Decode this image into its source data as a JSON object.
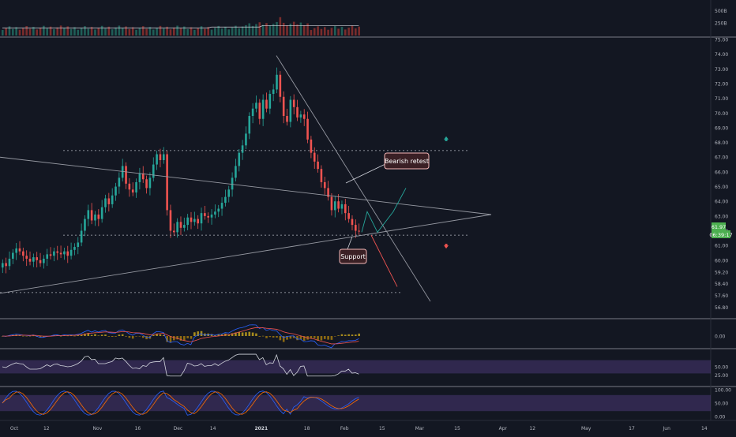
{
  "chart_data": {
    "type": "candlestick",
    "title": "",
    "price_axis": {
      "ticks": [
        56.8,
        57.6,
        58.4,
        59.2,
        60.0,
        61.0,
        62.0,
        63.0,
        64.0,
        65.0,
        66.0,
        67.0,
        68.0,
        69.0,
        70.0,
        71.0,
        72.0,
        73.0,
        74.0,
        75.0
      ],
      "tick_labels": [
        "56.80",
        "57.60",
        "58.40",
        "59.20",
        "60.00",
        "61.00",
        "62.00",
        "63.00",
        "64.00",
        "65.00",
        "66.00",
        "67.00",
        "68.00",
        "69.00",
        "70.00",
        "71.00",
        "72.00",
        "73.00",
        "74.00",
        "75.00"
      ],
      "ylim": [
        56.4,
        75.0
      ]
    },
    "time_axis": {
      "labels": [
        "Oct",
        "12",
        "Nov",
        "16",
        "Dec",
        "14",
        "2021",
        "18",
        "Feb",
        "15",
        "Mar",
        "15",
        "Apr",
        "12",
        "May",
        "17",
        "Jun",
        "14"
      ],
      "label_days": [
        0,
        12,
        31,
        46,
        61,
        74,
        92,
        109,
        123,
        137,
        151,
        165,
        182,
        193,
        213,
        230,
        243,
        257
      ]
    },
    "last_price": "61.97",
    "countdown": "06:39:17",
    "candles_close": [
      59.8,
      59.6,
      60.1,
      60.5,
      60.8,
      60.6,
      60.3,
      60.1,
      59.9,
      60.2,
      60.0,
      59.8,
      60.1,
      60.4,
      60.3,
      60.6,
      60.5,
      60.4,
      60.6,
      60.3,
      60.7,
      60.9,
      61.2,
      62.0,
      62.8,
      63.4,
      62.7,
      63.1,
      62.8,
      63.6,
      64.2,
      63.8,
      64.4,
      65.0,
      65.6,
      66.4,
      65.2,
      64.8,
      64.6,
      65.3,
      65.9,
      65.5,
      64.9,
      65.6,
      66.5,
      67.2,
      66.8,
      67.2,
      63.4,
      62.0,
      61.9,
      62.6,
      62.2,
      62.4,
      62.9,
      62.6,
      62.8,
      62.5,
      63.2,
      63.0,
      62.9,
      63.1,
      63.3,
      63.5,
      63.9,
      64.3,
      64.8,
      65.6,
      66.4,
      67.3,
      67.8,
      68.6,
      69.8,
      70.3,
      70.7,
      69.6,
      70.9,
      70.3,
      71.3,
      71.6,
      72.6,
      71.1,
      69.8,
      69.4,
      70.9,
      70.4,
      69.7,
      69.9,
      69.6,
      68.2,
      67.3,
      66.7,
      66.2,
      65.3,
      64.9,
      64.3,
      63.4,
      64.0,
      63.5,
      63.8,
      63.2,
      62.8,
      62.4,
      62.0,
      61.97
    ],
    "annotations": {
      "bearish_retest": "Bearish retest",
      "support": "Support"
    },
    "indicators": {
      "volume_ticks": [
        "500B",
        "250B"
      ],
      "volume_tick_values": [
        500,
        250
      ],
      "macd_ticks": [
        "0.00"
      ],
      "rsi_ticks": [
        "50.00",
        "25.00"
      ],
      "rsi_tick_values": [
        50,
        25
      ],
      "stoch_ticks": [
        "100.00",
        "50.00",
        "0.00"
      ],
      "stoch_tick_values": [
        100,
        50,
        0
      ]
    },
    "colors": {
      "bull": "#26a69a",
      "bear": "#ef5350",
      "background": "#131722",
      "band": "#7e57c2",
      "macd": "#2962ff",
      "signal": "#ff6d00",
      "price_label": "#4caf50"
    }
  }
}
